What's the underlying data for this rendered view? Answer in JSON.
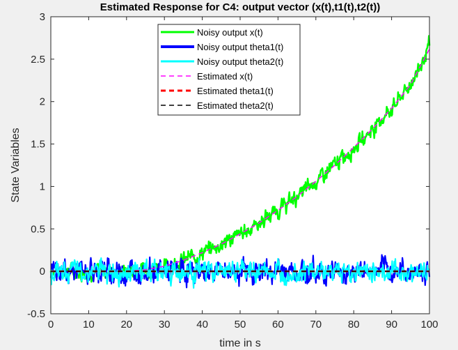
{
  "chart_data": {
    "type": "line",
    "title": "Estimated Response for C4: output vector (x(t),t1(t),t2(t))",
    "xlabel": "time in s",
    "ylabel": "State Variables",
    "xlim": [
      0,
      100
    ],
    "ylim": [
      -0.5,
      3
    ],
    "xticks": [
      0,
      10,
      20,
      30,
      40,
      50,
      60,
      70,
      80,
      90,
      100
    ],
    "yticks": [
      -0.5,
      0,
      0.5,
      1,
      1.5,
      2,
      2.5,
      3
    ],
    "xtick_labels": [
      "0",
      "10",
      "20",
      "30",
      "40",
      "50",
      "60",
      "70",
      "80",
      "90",
      "100"
    ],
    "ytick_labels": [
      "-0.5",
      "0",
      "0.5",
      "1",
      "1.5",
      "2",
      "2.5",
      "3"
    ],
    "grid": false,
    "legend_position": "top-center",
    "series": [
      {
        "name": "Noisy output x(t)",
        "color": "#00ff00",
        "style": "solid",
        "noise_amplitude": 0.1,
        "x": [
          0,
          10,
          20,
          25,
          30,
          35,
          40,
          45,
          50,
          55,
          60,
          65,
          70,
          75,
          80,
          85,
          90,
          95,
          100
        ],
        "y": [
          0,
          0,
          0,
          0.02,
          0.06,
          0.13,
          0.22,
          0.32,
          0.44,
          0.57,
          0.72,
          0.88,
          1.06,
          1.25,
          1.46,
          1.68,
          1.92,
          2.2,
          2.65
        ]
      },
      {
        "name": "Noisy output theta1(t)",
        "color": "#0000ff",
        "style": "solid",
        "noise_amplitude": 0.15,
        "x": [
          0,
          100
        ],
        "y": [
          0,
          0
        ]
      },
      {
        "name": "Noisy output theta2(t)",
        "color": "#00ffff",
        "style": "solid",
        "noise_amplitude": 0.13,
        "x": [
          0,
          100
        ],
        "y": [
          0,
          0
        ]
      },
      {
        "name": "Estimated x(t)",
        "color": "#ff00ff",
        "style": "dashed",
        "x": [
          0,
          10,
          20,
          25,
          30,
          35,
          40,
          45,
          50,
          55,
          60,
          65,
          70,
          75,
          80,
          85,
          90,
          95,
          100
        ],
        "y": [
          0,
          0,
          0,
          0.02,
          0.06,
          0.13,
          0.22,
          0.32,
          0.44,
          0.57,
          0.72,
          0.88,
          1.06,
          1.25,
          1.46,
          1.68,
          1.92,
          2.2,
          2.62
        ]
      },
      {
        "name": "Estimated theta1(t)",
        "color": "#ff0000",
        "style": "dashed",
        "x": [
          0,
          100
        ],
        "y": [
          0,
          0
        ]
      },
      {
        "name": "Estimated theta2(t)",
        "color": "#000000",
        "style": "dashed",
        "x": [
          0,
          100
        ],
        "y": [
          0,
          0
        ]
      }
    ]
  }
}
